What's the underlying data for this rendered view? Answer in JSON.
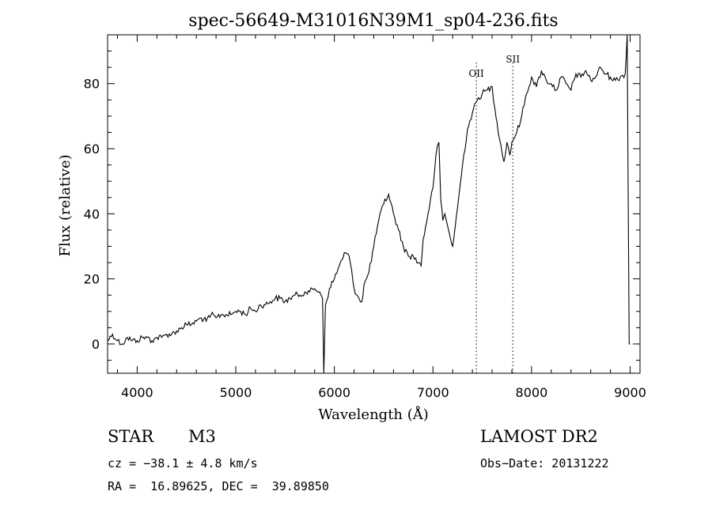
{
  "chart_data": {
    "type": "line",
    "title": "spec-56649-M31016N39M1_sp04-236.fits",
    "xlabel": "Wavelength (Å)",
    "ylabel": "Flux (relative)",
    "xlim": [
      3700,
      9100
    ],
    "ylim": [
      -9,
      95
    ],
    "xticks": [
      4000,
      5000,
      6000,
      7000,
      8000,
      9000
    ],
    "yticks": [
      0,
      20,
      40,
      60,
      80
    ],
    "grid": false,
    "line_color": "#000000",
    "series": [
      {
        "x": [
          3700,
          3750,
          3800,
          3850,
          3900,
          3950,
          4000,
          4050,
          4100,
          4150,
          4200,
          4250,
          4300,
          4350,
          4400,
          4450,
          4500,
          4550,
          4600,
          4650,
          4700,
          4750,
          4800,
          4850,
          4900,
          4950,
          5000,
          5050,
          5100,
          5150,
          5200,
          5250,
          5300,
          5350,
          5400,
          5450,
          5500,
          5550,
          5600,
          5650,
          5700,
          5750,
          5800,
          5850,
          5880,
          5893,
          5910,
          5950,
          6000,
          6050,
          6080,
          6100,
          6150,
          6200,
          6250,
          6280,
          6300,
          6350,
          6400,
          6450,
          6500,
          6550,
          6600,
          6650,
          6700,
          6750,
          6800,
          6850,
          6880,
          6900,
          6950,
          7000,
          7030,
          7060,
          7080,
          7100,
          7120,
          7150,
          7180,
          7200,
          7250,
          7300,
          7350,
          7400,
          7450,
          7500,
          7550,
          7600,
          7630,
          7650,
          7700,
          7720,
          7750,
          7780,
          7800,
          7850,
          7900,
          7950,
          8000,
          8050,
          8100,
          8150,
          8200,
          8250,
          8300,
          8350,
          8400,
          8450,
          8500,
          8550,
          8600,
          8650,
          8700,
          8750,
          8800,
          8850,
          8900,
          8950,
          8970,
          8990,
          9000
        ],
        "values": [
          1,
          3,
          1,
          0,
          2,
          1,
          1,
          2,
          2,
          1,
          2,
          2,
          3,
          3,
          4,
          5,
          6,
          6,
          7,
          8,
          7,
          9,
          8,
          9,
          9,
          9,
          10,
          10,
          9,
          11,
          10,
          12,
          12,
          13,
          14,
          14,
          13,
          14,
          15,
          15,
          16,
          16,
          17,
          16,
          14,
          -9,
          12,
          17,
          20,
          24,
          26,
          28,
          27,
          17,
          14,
          13,
          18,
          22,
          30,
          38,
          43,
          46,
          40,
          35,
          30,
          27,
          27,
          25,
          24,
          32,
          40,
          48,
          58,
          62,
          44,
          38,
          40,
          36,
          32,
          30,
          42,
          55,
          66,
          71,
          75,
          77,
          78,
          79,
          72,
          68,
          59,
          56,
          62,
          58,
          62,
          65,
          70,
          77,
          82,
          79,
          84,
          81,
          80,
          78,
          82,
          80,
          78,
          83,
          82,
          84,
          81,
          82,
          85,
          83,
          82,
          81,
          82,
          83,
          95,
          0,
          0
        ]
      }
    ],
    "annotations": [
      {
        "label": "OII",
        "x": 7440
      },
      {
        "label": "SII",
        "x": 7810
      }
    ]
  },
  "info": {
    "object_class": "STAR",
    "subclass": "M3",
    "survey": "LAMOST DR2",
    "cz": "cz = −38.1 ± 4.8 km/s",
    "obs_date": "Obs−Date: 20131222",
    "coords": "RA =  16.89625, DEC =  39.89850"
  }
}
